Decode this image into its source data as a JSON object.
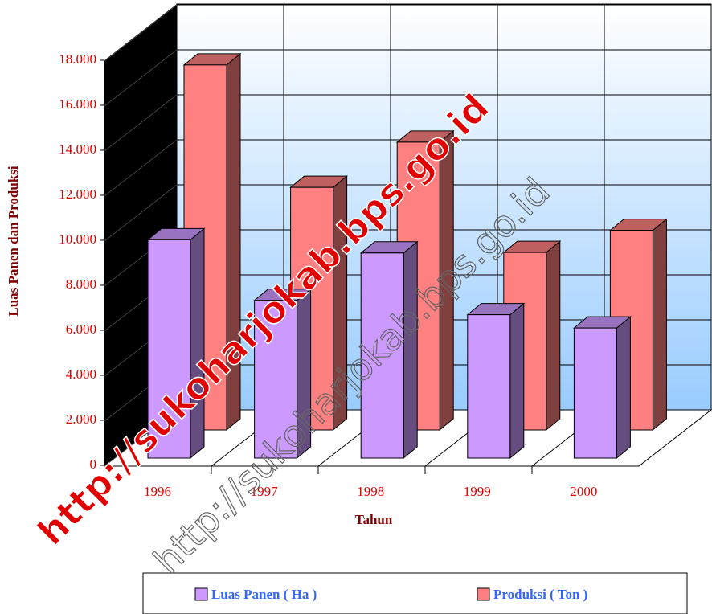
{
  "chart_data": {
    "type": "bar3d",
    "x_label": "Tahun",
    "y_label": "Luas Panen dan Produksi",
    "categories": [
      "1996",
      "1997",
      "1998",
      "1999",
      "2000"
    ],
    "series": [
      {
        "name": "Luas Panen ( Ha )",
        "color": "#cc99ff",
        "values": [
          9900,
          7150,
          9300,
          6500,
          5900
        ]
      },
      {
        "name": "Produksi ( Ton )",
        "color": "#ff8080",
        "values": [
          16550,
          11000,
          13050,
          8050,
          9050
        ]
      }
    ],
    "ylim": [
      0,
      18000
    ],
    "yticks": [
      0,
      {
        "value": 2000,
        "label": "2.000"
      },
      {
        "value": 4000,
        "label": "4.000"
      },
      {
        "value": 6000,
        "label": "6.000"
      },
      {
        "value": 8000,
        "label": "8.000"
      },
      {
        "value": 10000,
        "label": "10.000"
      },
      {
        "value": 12000,
        "label": "12.000"
      },
      {
        "value": 14000,
        "label": "14.000"
      },
      {
        "value": 16000,
        "label": "16.000"
      },
      {
        "value": 18000,
        "label": "18.000"
      }
    ],
    "grid": true,
    "legend": "bottom",
    "watermark": "http://sukoharjokab.bps.go.id"
  }
}
